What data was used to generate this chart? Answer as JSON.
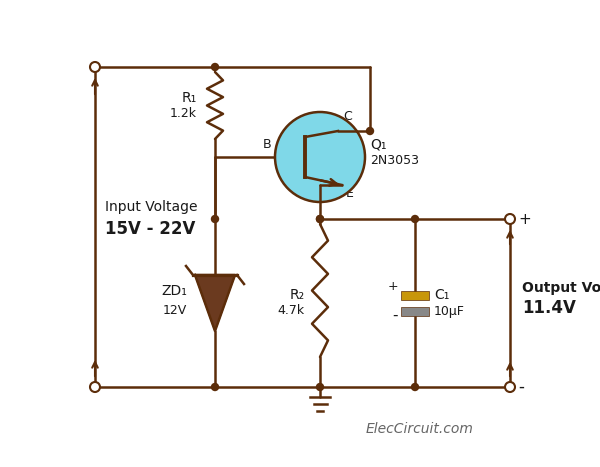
{
  "background_color": "#ffffff",
  "line_color": "#5c2d0a",
  "line_width": 1.8,
  "dot_color": "#5c2d0a",
  "transistor_fill": "#7fd8e8",
  "transistor_edge": "#5c2d0a",
  "zener_fill": "#6b3a1f",
  "cap_fill_top": "#c8960a",
  "cap_fill_bot": "#888888",
  "text_color": "#1a1a1a",
  "input_label": "Input Voltage",
  "input_voltage": "15V - 22V",
  "output_label": "Output Voltage",
  "output_voltage": "11.4V",
  "r1_label": "R₁",
  "r1_value": "1.2k",
  "r2_label": "R₂",
  "r2_value": "4.7k",
  "zd_label": "ZD₁",
  "zd_value": "12V",
  "q_label": "Q₁",
  "q_value": "2N3053",
  "c_label": "C₁",
  "c_value": "10μF",
  "watermark": "ElecCircuit.com",
  "figsize": [
    6.0,
    4.67
  ],
  "dpi": 100
}
